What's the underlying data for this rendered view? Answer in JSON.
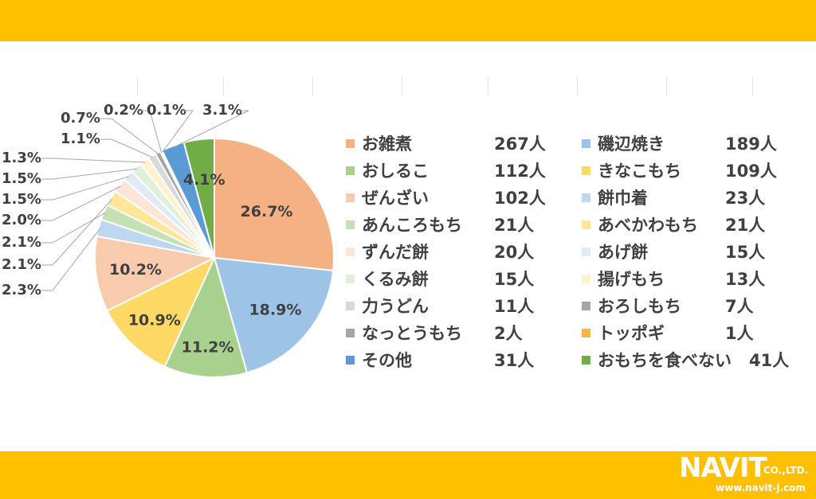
{
  "chart_data": {
    "type": "pie",
    "slices": [
      {
        "label": "お雑煮",
        "count": "267人",
        "value": 26.7,
        "pct": "26.7%",
        "color": "#F4B183"
      },
      {
        "label": "磯辺焼き",
        "count": "189人",
        "value": 18.9,
        "pct": "18.9%",
        "color": "#9DC3E6"
      },
      {
        "label": "おしるこ",
        "count": "112人",
        "value": 11.2,
        "pct": "11.2%",
        "color": "#A9D18E"
      },
      {
        "label": "きなこもち",
        "count": "109人",
        "value": 10.9,
        "pct": "10.9%",
        "color": "#FFD966"
      },
      {
        "label": "ぜんざい",
        "count": "102人",
        "value": 10.2,
        "pct": "10.2%",
        "color": "#F8CBAD"
      },
      {
        "label": "餅巾着",
        "count": "23人",
        "value": 2.3,
        "pct": "2.3%",
        "color": "#BDD7EE"
      },
      {
        "label": "あんころもち",
        "count": "21人",
        "value": 2.1,
        "pct": "2.1%",
        "color": "#C5E0B4"
      },
      {
        "label": "あべかわもち",
        "count": "21人",
        "value": 2.1,
        "pct": "2.1%",
        "color": "#FFE699"
      },
      {
        "label": "ずんだ餅",
        "count": "20人",
        "value": 2.0,
        "pct": "2.0%",
        "color": "#FBE5D6"
      },
      {
        "label": "あげ餅",
        "count": "15人",
        "value": 1.5,
        "pct": "1.5%",
        "color": "#DEEBF7"
      },
      {
        "label": "くるみ餅",
        "count": "15人",
        "value": 1.5,
        "pct": "1.5%",
        "color": "#E2F0D9"
      },
      {
        "label": "揚げもち",
        "count": "13人",
        "value": 1.3,
        "pct": "1.3%",
        "color": "#FFF2CC"
      },
      {
        "label": "力うどん",
        "count": "11人",
        "value": 1.1,
        "pct": "1.1%",
        "color": "#D9D9D9"
      },
      {
        "label": "おろしもち",
        "count": "7人",
        "value": 0.7,
        "pct": "0.7%",
        "color": "#A5A5A5"
      },
      {
        "label": "なっとうもち",
        "count": "2人",
        "value": 0.2,
        "pct": "0.2%",
        "color": "#A6A6A6"
      },
      {
        "label": "トッポギ",
        "count": "1人",
        "value": 0.1,
        "pct": "0.1%",
        "color": "#F4B942"
      },
      {
        "label": "その他",
        "count": "31人",
        "value": 3.1,
        "pct": "3.1%",
        "color": "#5B9BD5"
      },
      {
        "label": "おもちを食べない",
        "count": "41人",
        "value": 4.1,
        "pct": "4.1%",
        "color": "#70AD47"
      }
    ]
  },
  "logo": {
    "word": "NAVIT",
    "suffix": "CO.,LTD.",
    "url": "www.navit-j.com"
  }
}
